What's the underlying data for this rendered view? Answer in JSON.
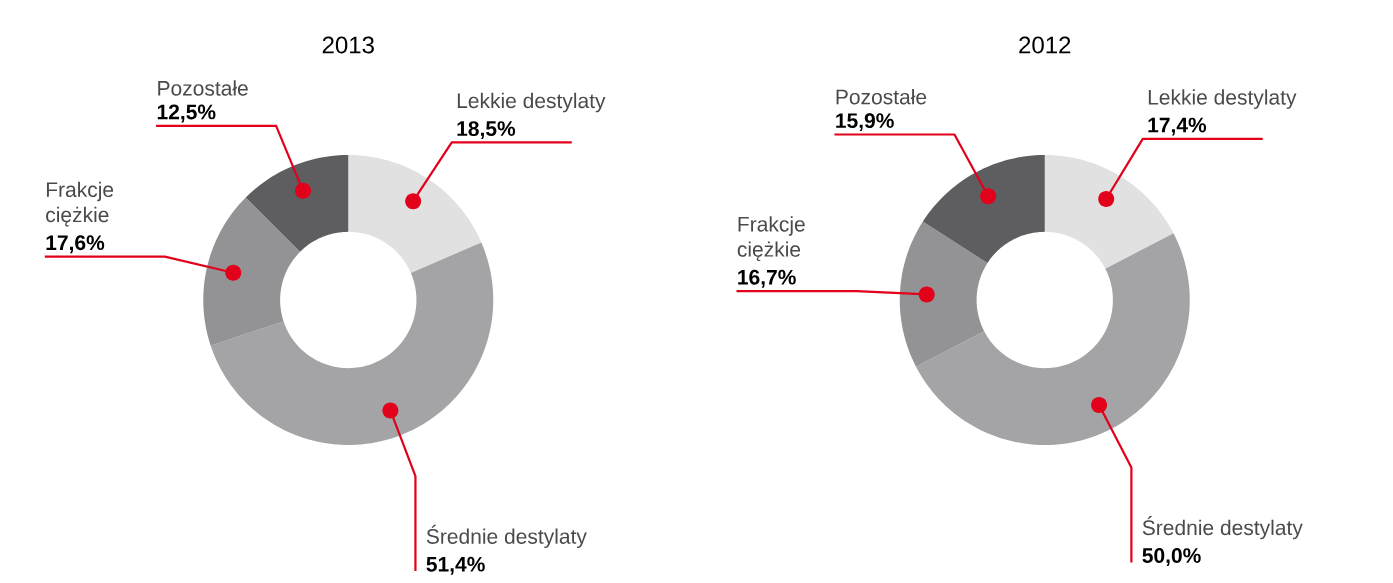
{
  "chart_data": [
    {
      "type": "donut",
      "title": "2013",
      "categories": [
        "Lekkie destylaty",
        "Średnie destylaty",
        "Frakcje ciężkie",
        "Pozostałe"
      ],
      "values": [
        18.5,
        51.4,
        17.6,
        12.5
      ],
      "value_labels": [
        "18,5%",
        "51,4%",
        "17,6%",
        "12,5%"
      ],
      "colors": [
        "#e1e1e1",
        "#a4a4a6",
        "#939395",
        "#5e5e60"
      ]
    },
    {
      "type": "donut",
      "title": "2012",
      "categories": [
        "Lekkie destylaty",
        "Średnie destylaty",
        "Frakcje ciężkie",
        "Pozostałe"
      ],
      "values": [
        17.4,
        50.0,
        16.7,
        15.9
      ],
      "value_labels": [
        "17,4%",
        "50,0%",
        "16,7%",
        "15,9%"
      ],
      "colors": [
        "#e1e1e1",
        "#a4a4a6",
        "#939395",
        "#5e5e60"
      ]
    }
  ]
}
